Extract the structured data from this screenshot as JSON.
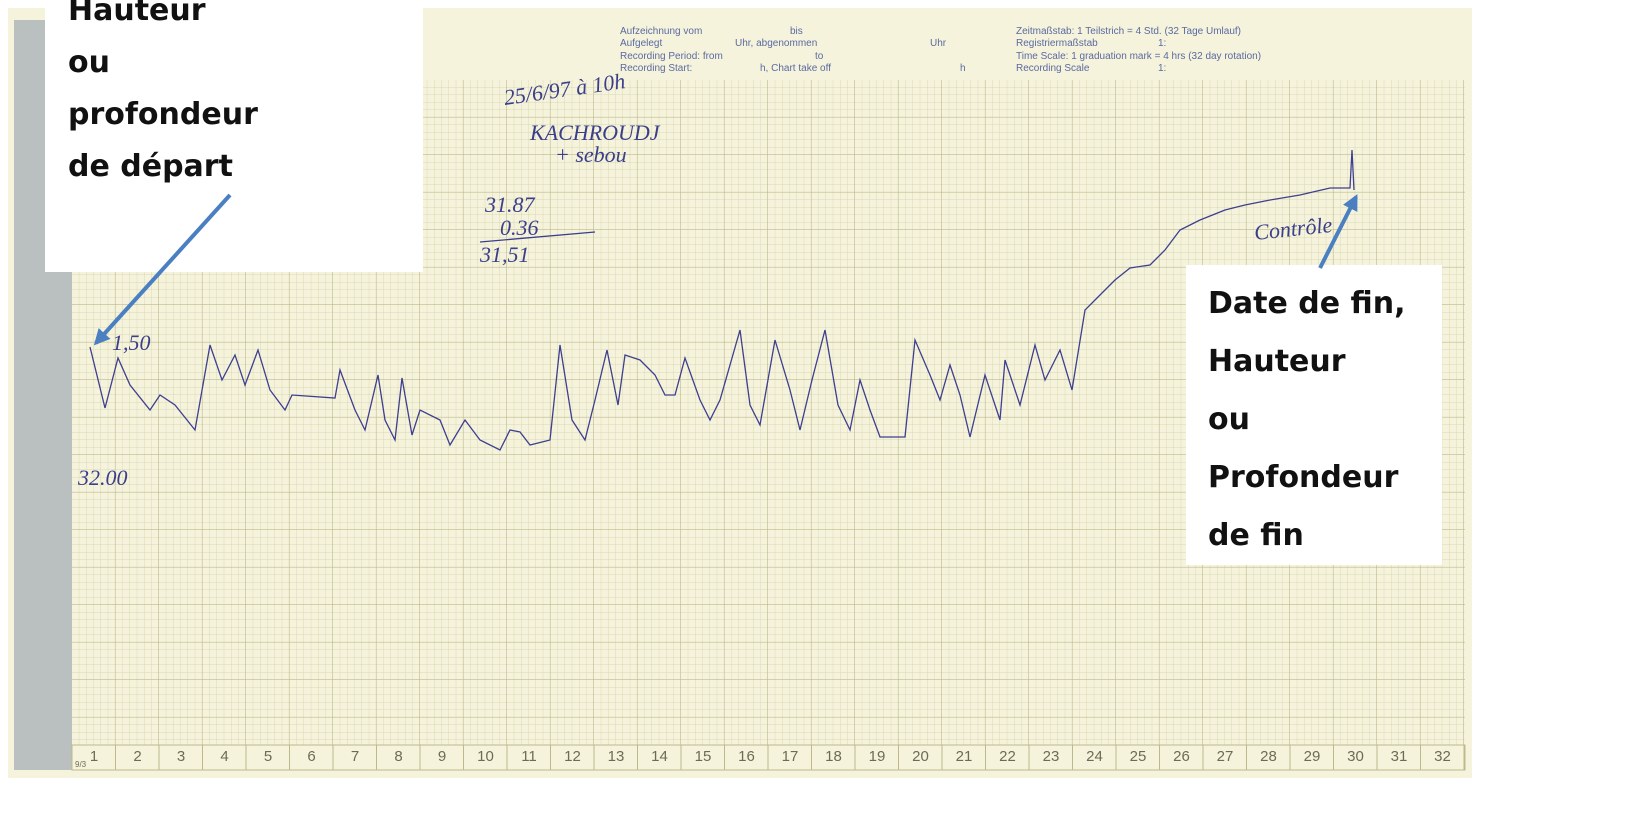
{
  "header": {
    "left_lines": [
      "Aufzeichnung vom",
      "Aufgelegt",
      "Recording Period: from",
      "Recording Start:"
    ],
    "mid_lines": [
      "bis",
      "Uhr, abgenommen",
      "to",
      "h, Chart take off"
    ],
    "end_lines": [
      "Uhr",
      "h"
    ],
    "right_lines": [
      "Zeitmaßstab: 1 Teilstrich = 4 Std. (32 Tage Umlauf)",
      "Registriermaßstab",
      "Time Scale: 1 graduation mark = 4 hrs (32 day rotation)",
      "Recording Scale"
    ],
    "scale_values": [
      "1:",
      "1:"
    ]
  },
  "start_mark": "9/3",
  "days": [
    1,
    2,
    3,
    4,
    5,
    6,
    7,
    8,
    9,
    10,
    11,
    12,
    13,
    14,
    15,
    16,
    17,
    18,
    19,
    20,
    21,
    22,
    23,
    24,
    25,
    26,
    27,
    28,
    29,
    30,
    31,
    32
  ],
  "handwriting": {
    "date": "25/6/97 à 10h",
    "name": "KACHROUDJ",
    "extra": "+ sebou",
    "calc": [
      "31.87",
      "0.36",
      "31,51"
    ],
    "start_value": "1,50",
    "level": "32.00",
    "end_note": "Contrôle"
  },
  "annotations": {
    "start": [
      "Hauteur",
      "ou",
      "profondeur",
      "de départ"
    ],
    "end": [
      "Date de fin,",
      "Hauteur",
      "ou",
      "Profondeur",
      "de fin"
    ]
  }
}
